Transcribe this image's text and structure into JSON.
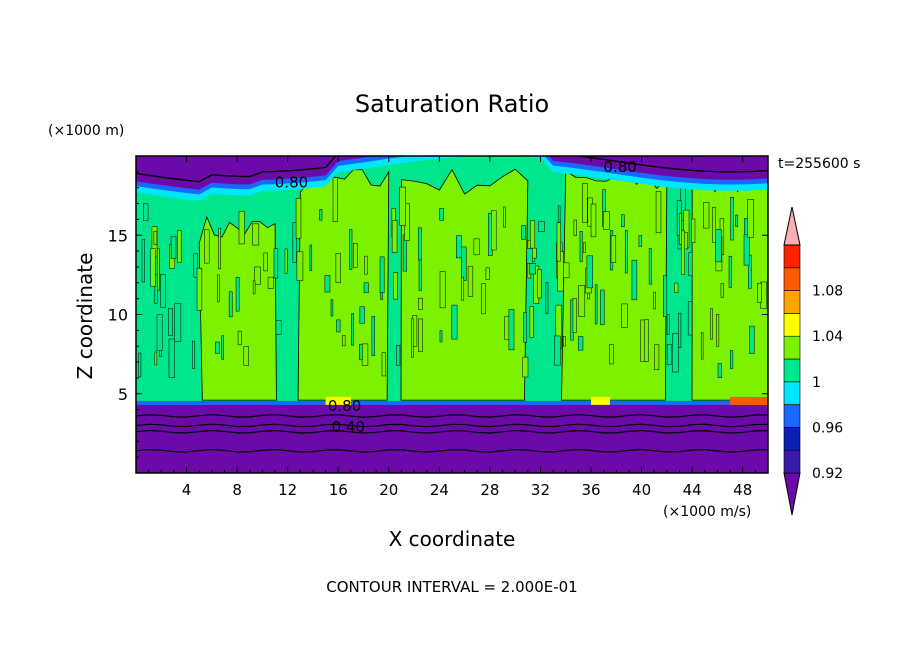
{
  "chart_data": {
    "type": "heatmap",
    "title": "Saturation Ratio",
    "xlabel": "X coordinate",
    "ylabel": "Z coordinate",
    "x_unit": "(×1000 m/s)",
    "y_unit": "(×1000 m)",
    "time_label": "t=255600 s",
    "footer": "CONTOUR INTERVAL = 2.000E-01",
    "xlim": [
      0,
      50
    ],
    "ylim": [
      0,
      20
    ],
    "x_ticks": [
      4,
      8,
      12,
      16,
      20,
      24,
      28,
      32,
      36,
      40,
      44,
      48
    ],
    "y_ticks": [
      5,
      10,
      15
    ],
    "colorbar": {
      "levels": [
        0.92,
        0.94,
        0.96,
        0.98,
        1.0,
        1.02,
        1.04,
        1.06,
        1.08,
        1.1
      ],
      "tick_labels": [
        "0.92",
        "0.96",
        "1",
        "1.04",
        "1.08"
      ],
      "colors": [
        "#6b0aa8",
        "#3a1aa8",
        "#0b1fb5",
        "#1a66ff",
        "#00e6ff",
        "#00e68a",
        "#7df200",
        "#ffff00",
        "#ffa500",
        "#ff5a00",
        "#ff2200",
        "#f7b0b0"
      ]
    },
    "contour_labels": [
      {
        "text": "0.80",
        "x": 12.3,
        "y": 18.0
      },
      {
        "text": "0.80",
        "x": 38.3,
        "y": 19.0
      },
      {
        "text": "0.80",
        "x": 16.5,
        "y": 3.9
      },
      {
        "text": "0.40",
        "x": 16.8,
        "y": 2.6
      }
    ],
    "regions": {
      "lower_dry_layer_top": 4.3,
      "upper_dry_layer_base": 18.5,
      "supersaturated_columns_x": [
        [
          5,
          11
        ],
        [
          13,
          20
        ],
        [
          21,
          31
        ],
        [
          34,
          42
        ],
        [
          44,
          50
        ]
      ]
    }
  }
}
